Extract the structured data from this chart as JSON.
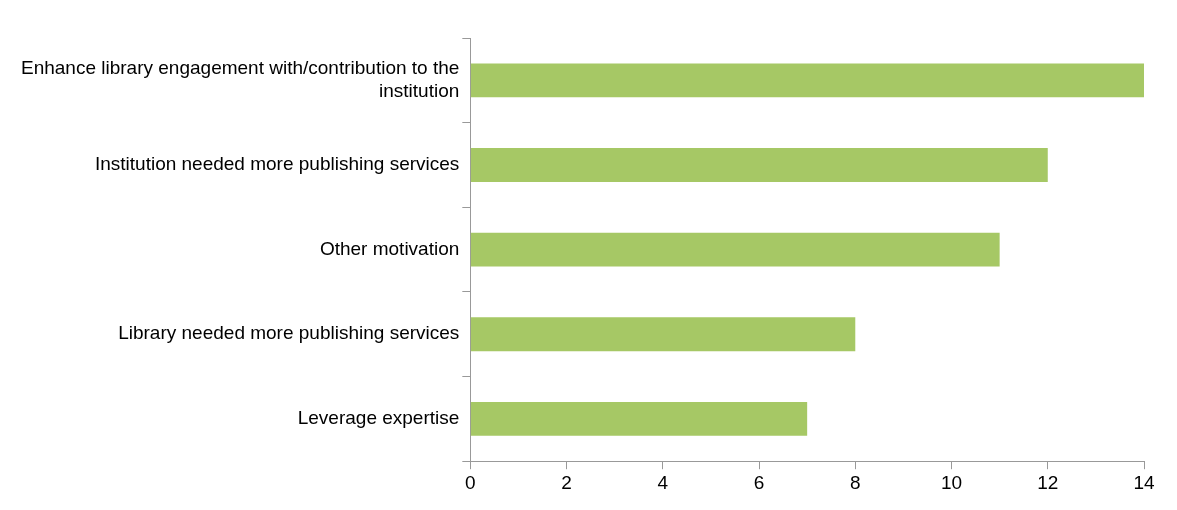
{
  "chart_data": {
    "type": "bar",
    "orientation": "horizontal",
    "categories": [
      "Enhance library engagement with/contribution to the institution",
      "Institution needed more publishing services",
      "Other motivation",
      "Library needed more publishing services",
      "Leverage expertise"
    ],
    "values": [
      14,
      12,
      11,
      8,
      7
    ],
    "color": "#a6c865",
    "xlim": [
      0,
      14
    ],
    "xticks": [
      0,
      2,
      4,
      6,
      8,
      10,
      12,
      14
    ],
    "grid": false,
    "legend": false
  }
}
